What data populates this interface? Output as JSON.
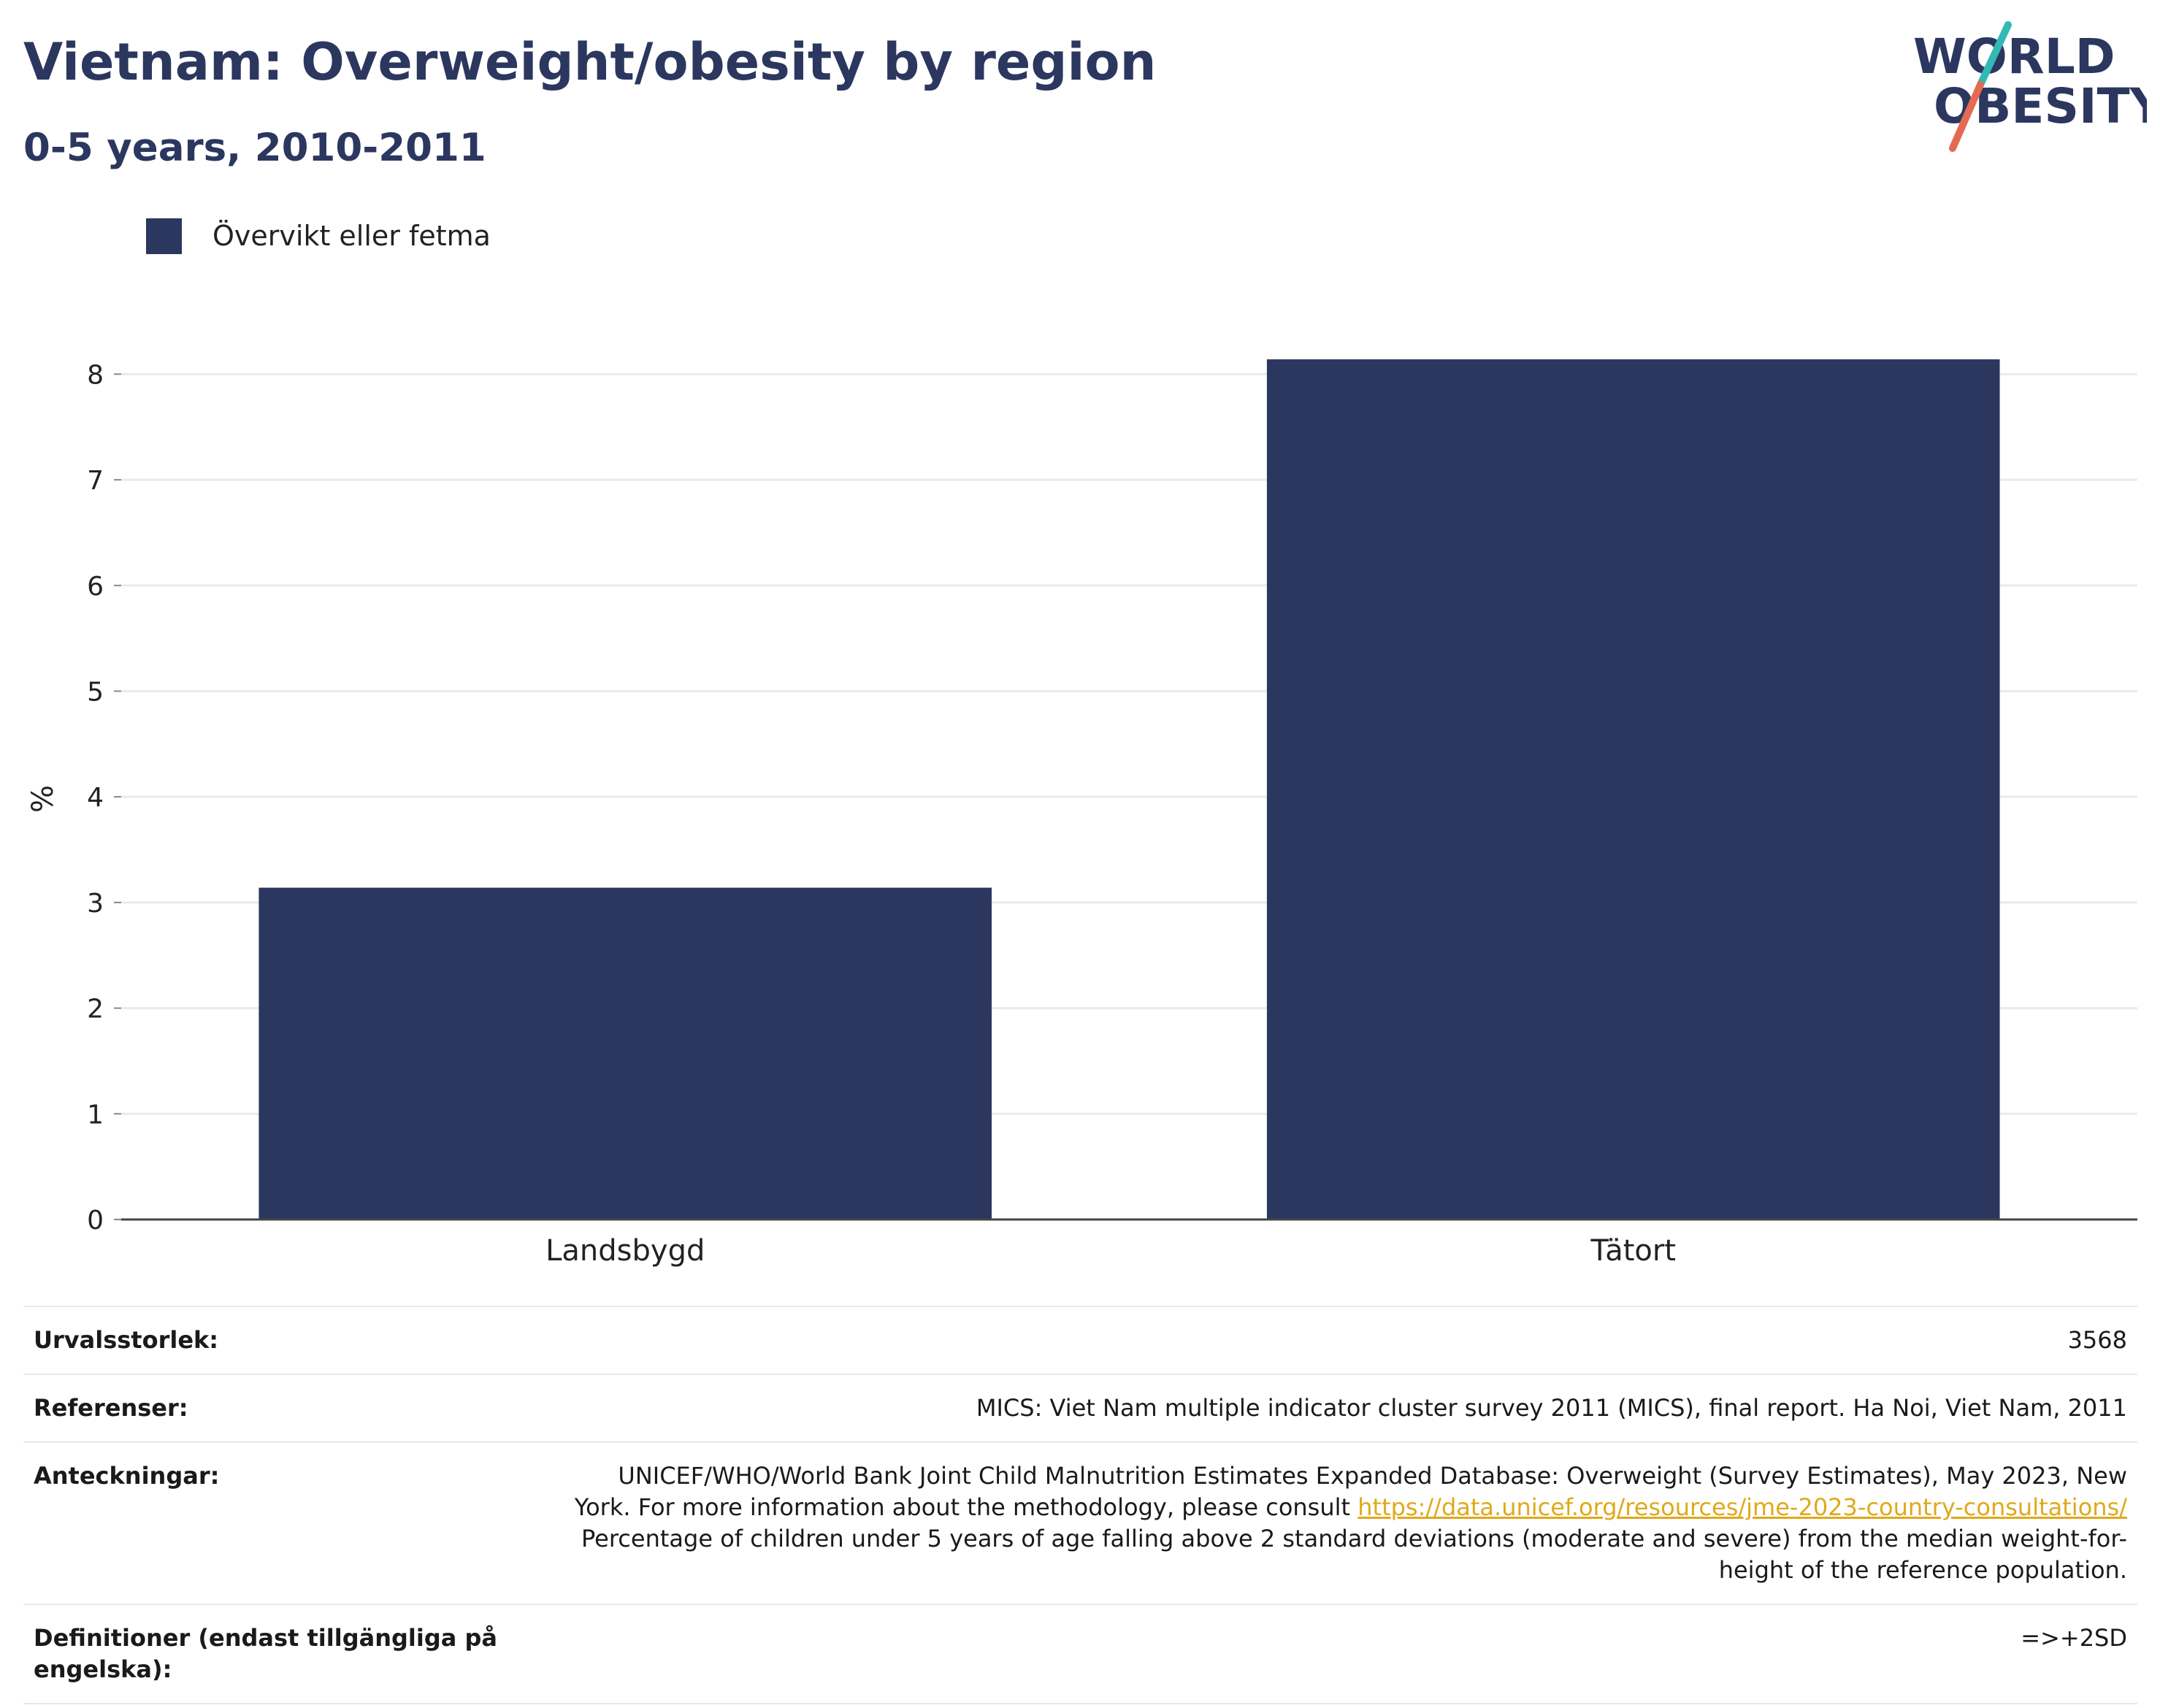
{
  "header": {
    "title": "Vietnam: Overweight/obesity by region",
    "subtitle": "0-5 years, 2010-2011"
  },
  "logo": {
    "line1": "WORLD",
    "line2": "OBESITY",
    "accent_colors": [
      "#33b8b5",
      "#e56a54"
    ]
  },
  "colors": {
    "primary": "#2b375f",
    "grid": "#e7ebef",
    "axis": "#444444"
  },
  "chart_data": {
    "type": "bar",
    "categories": [
      "Landsbygd",
      "Tätort"
    ],
    "series": [
      {
        "name": "Övervikt eller fetma",
        "values": [
          3.14,
          8.14
        ],
        "color": "#2b375f"
      }
    ],
    "title": "",
    "xlabel": "",
    "ylabel": "%",
    "ylim": [
      0,
      8.5
    ],
    "yticks": [
      0,
      1,
      2,
      3,
      4,
      5,
      6,
      7,
      8
    ],
    "grid": true,
    "legend_position": "top-left"
  },
  "meta": {
    "sample_label": "Urvalsstorlek:",
    "sample_value": "3568",
    "refs_label": "Referenser:",
    "refs_value": "MICS: Viet Nam multiple indicator cluster survey 2011 (MICS), final report. Ha Noi, Viet Nam, 2011",
    "notes_label": "Anteckningar:",
    "notes_line1": "UNICEF/WHO/World Bank Joint Child Malnutrition Estimates Expanded Database: Overweight (Survey Estimates), May 2023, New",
    "notes_line2_pre": "York. For more information about the methodology, please consult ",
    "notes_link": "https://data.unicef.org/resources/jme-2023-country-consultations/",
    "notes_line3": "Percentage of children under 5 years of age falling above 2 standard deviations (moderate and severe) from the median weight-for-",
    "notes_line4": "height of the reference population.",
    "defs_label_line1": "Definitioner (endast tillgängliga på",
    "defs_label_line2": "engelska):",
    "defs_value": "=>+2SD"
  }
}
